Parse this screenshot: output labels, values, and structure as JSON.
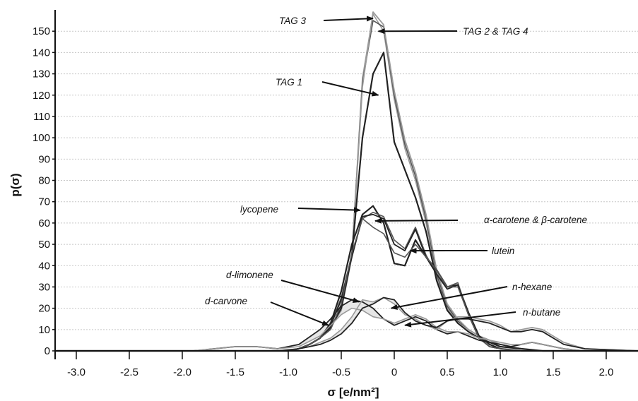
{
  "chart_data": {
    "type": "line",
    "title": "",
    "xlabel": "σ [e/nm²]",
    "ylabel": "p(σ)",
    "xlim": [
      -3.2,
      2.3
    ],
    "ylim": [
      0,
      160
    ],
    "x_ticks": [
      "-3.0",
      "-2.5",
      "-2.0",
      "-1.5",
      "-1.0",
      "-0.5",
      "0",
      "0.5",
      "1.0",
      "1.5",
      "2.0"
    ],
    "y_ticks": [
      "0",
      "10",
      "20",
      "30",
      "40",
      "50",
      "60",
      "70",
      "80",
      "90",
      "100",
      "110",
      "120",
      "130",
      "140",
      "150"
    ],
    "grid": "horizontal",
    "legend": "none",
    "colors": {
      "dark": "#222222",
      "mid": "#555555",
      "light": "#9a9a9a",
      "fill": "#e6e6e6"
    },
    "series": [
      {
        "x": [
          -3.2,
          -1.2,
          -1.0,
          -0.9,
          -0.8,
          -0.7,
          -0.6,
          -0.5,
          -0.4,
          -0.3,
          -0.2,
          -0.1,
          0.0,
          0.1,
          0.2,
          0.3,
          0.4,
          0.5,
          0.6,
          0.7,
          0.8,
          0.9,
          1.0,
          1.2,
          1.4,
          1.6,
          2.3
        ],
        "y": [
          0,
          0,
          0,
          1,
          3,
          6,
          11,
          20,
          45,
          128,
          158,
          150,
          118,
          95,
          80,
          60,
          35,
          20,
          14,
          10,
          7,
          5,
          3,
          1,
          0,
          0,
          0
        ]
      },
      {
        "x": [
          -3.2,
          -1.2,
          -1.0,
          -0.9,
          -0.8,
          -0.7,
          -0.6,
          -0.5,
          -0.4,
          -0.3,
          -0.2,
          -0.1,
          0.0,
          0.1,
          0.2,
          0.3,
          0.4,
          0.5,
          0.6,
          0.7,
          0.8,
          0.9,
          1.0,
          1.2,
          1.4,
          1.6,
          2.3
        ],
        "y": [
          0,
          0,
          0,
          1,
          3,
          6,
          11,
          20,
          45,
          126,
          155,
          152,
          120,
          97,
          82,
          62,
          36,
          21,
          14,
          10,
          7,
          5,
          3,
          1,
          0,
          0,
          0
        ]
      },
      {
        "x": [
          -3.2,
          -1.2,
          -1.0,
          -0.9,
          -0.8,
          -0.7,
          -0.6,
          -0.5,
          -0.4,
          -0.3,
          -0.2,
          -0.1,
          0.0,
          0.1,
          0.2,
          0.3,
          0.4,
          0.5,
          0.6,
          0.7,
          0.8,
          0.9,
          1.0,
          1.2,
          1.4,
          1.6,
          2.3
        ],
        "y": [
          0,
          0,
          0,
          1,
          3,
          6,
          11,
          19,
          44,
          124,
          159,
          153,
          122,
          99,
          84,
          64,
          38,
          22,
          15,
          10,
          7,
          5,
          3,
          1,
          0,
          0,
          0
        ]
      },
      {
        "x": [
          -3.2,
          -1.2,
          -1.0,
          -0.9,
          -0.8,
          -0.7,
          -0.6,
          -0.5,
          -0.4,
          -0.3,
          -0.2,
          -0.1,
          0.0,
          0.1,
          0.2,
          0.3,
          0.4,
          0.5,
          0.6,
          0.7,
          0.8,
          0.9,
          1.0,
          1.2,
          1.4,
          1.6,
          2.3
        ],
        "y": [
          0,
          0,
          0,
          1,
          3,
          6,
          11,
          20,
          45,
          100,
          130,
          140,
          98,
          85,
          72,
          56,
          33,
          19,
          13,
          9,
          6,
          4,
          2,
          1,
          0,
          0,
          0
        ]
      },
      {
        "x": [
          -3.2,
          -1.0,
          -0.9,
          -0.8,
          -0.7,
          -0.6,
          -0.5,
          -0.4,
          -0.3,
          -0.2,
          -0.1,
          0.0,
          0.1,
          0.2,
          0.3,
          0.4,
          0.5,
          0.6,
          0.7,
          0.8,
          0.9,
          1.0,
          1.2,
          1.4,
          1.6,
          2.3
        ],
        "y": [
          0,
          0,
          1,
          3,
          6,
          13,
          28,
          50,
          64,
          68,
          60,
          41,
          40,
          52,
          44,
          38,
          30,
          31,
          18,
          7,
          3,
          1,
          0,
          0,
          0,
          0
        ]
      },
      {
        "x": [
          -3.2,
          -1.0,
          -0.9,
          -0.8,
          -0.7,
          -0.6,
          -0.5,
          -0.4,
          -0.3,
          -0.2,
          -0.1,
          0.0,
          0.1,
          0.2,
          0.3,
          0.4,
          0.5,
          0.6,
          0.7,
          0.8,
          0.9,
          1.0,
          1.2,
          1.4,
          1.6,
          2.3
        ],
        "y": [
          0,
          0,
          1,
          3,
          6,
          12,
          25,
          45,
          62,
          65,
          63,
          52,
          48,
          58,
          45,
          36,
          30,
          32,
          17,
          6,
          2,
          1,
          0,
          0,
          0,
          0
        ]
      },
      {
        "x": [
          -3.2,
          -1.0,
          -0.9,
          -0.8,
          -0.7,
          -0.6,
          -0.5,
          -0.4,
          -0.3,
          -0.2,
          -0.1,
          0.0,
          0.1,
          0.2,
          0.3,
          0.4,
          0.5,
          0.6,
          0.7,
          0.8,
          0.9,
          1.0,
          1.2,
          1.4,
          1.6,
          2.3
        ],
        "y": [
          0,
          0,
          1,
          3,
          6,
          12,
          24,
          44,
          63,
          64,
          62,
          50,
          47,
          57,
          44,
          36,
          29,
          31,
          17,
          6,
          2,
          1,
          0,
          0,
          0,
          0
        ]
      },
      {
        "x": [
          -3.2,
          -1.0,
          -0.9,
          -0.8,
          -0.7,
          -0.6,
          -0.5,
          -0.4,
          -0.3,
          -0.2,
          -0.1,
          0.0,
          0.1,
          0.2,
          0.3,
          0.4,
          0.5,
          0.6,
          0.7,
          0.8,
          0.9,
          1.0,
          1.2,
          1.4,
          1.6,
          2.3
        ],
        "y": [
          0,
          0,
          1,
          3,
          6,
          10,
          22,
          46,
          62,
          58,
          55,
          46,
          44,
          50,
          44,
          38,
          30,
          30,
          17,
          6,
          2,
          1,
          0,
          0,
          0,
          0
        ]
      },
      {
        "x": [
          -3.2,
          -1.9,
          -1.7,
          -1.5,
          -1.3,
          -1.1,
          -0.9,
          -0.7,
          -0.6,
          -0.5,
          -0.4,
          -0.3,
          -0.2,
          -0.1,
          0.0,
          0.1,
          0.2,
          0.3,
          0.4,
          0.5,
          0.6,
          0.7,
          0.8,
          0.9,
          1.0,
          1.1,
          1.2,
          1.3,
          1.4,
          1.5,
          1.6,
          1.8,
          2.0,
          2.3
        ],
        "y": [
          0,
          0,
          1,
          2,
          2,
          1,
          3,
          10,
          15,
          21,
          24,
          23,
          20,
          15,
          12,
          14,
          16,
          14,
          10,
          8,
          9,
          7,
          5,
          4,
          3,
          2,
          3,
          4,
          3,
          2,
          1,
          0,
          0,
          0
        ]
      },
      {
        "x": [
          -3.2,
          -1.9,
          -1.7,
          -1.5,
          -1.3,
          -1.1,
          -0.9,
          -0.7,
          -0.6,
          -0.5,
          -0.4,
          -0.3,
          -0.2,
          -0.1,
          0.0,
          0.1,
          0.2,
          0.3,
          0.4,
          0.5,
          0.6,
          0.7,
          0.8,
          0.9,
          1.0,
          1.1,
          1.2,
          1.3,
          1.4,
          1.5,
          1.6,
          1.8,
          2.0,
          2.3
        ],
        "y": [
          0,
          0,
          1,
          2,
          2,
          1,
          2,
          7,
          12,
          17,
          20,
          19,
          16,
          15,
          13,
          15,
          17,
          15,
          11,
          9,
          9,
          8,
          6,
          5,
          4,
          3,
          3,
          4,
          3,
          2,
          1,
          0,
          0,
          0
        ]
      },
      {
        "x": [
          -3.2,
          -1.1,
          -0.9,
          -0.8,
          -0.7,
          -0.6,
          -0.5,
          -0.4,
          -0.3,
          -0.2,
          -0.1,
          0.0,
          0.1,
          0.2,
          0.3,
          0.4,
          0.5,
          0.6,
          0.7,
          0.8,
          0.9,
          1.0,
          1.1,
          1.2,
          1.3,
          1.4,
          1.5,
          1.6,
          1.8,
          2.3
        ],
        "y": [
          0,
          0,
          1,
          2,
          4,
          6,
          10,
          16,
          24,
          23,
          25,
          22,
          17,
          15,
          12,
          10,
          14,
          16,
          16,
          15,
          14,
          12,
          9,
          10,
          11,
          10,
          7,
          4,
          1,
          0
        ]
      },
      {
        "x": [
          -3.2,
          -1.1,
          -0.9,
          -0.8,
          -0.7,
          -0.6,
          -0.5,
          -0.4,
          -0.3,
          -0.2,
          -0.1,
          0.0,
          0.1,
          0.2,
          0.3,
          0.4,
          0.5,
          0.6,
          0.7,
          0.8,
          0.9,
          1.0,
          1.1,
          1.2,
          1.3,
          1.4,
          1.5,
          1.6,
          1.8,
          2.3
        ],
        "y": [
          0,
          0,
          1,
          2,
          3,
          5,
          8,
          13,
          20,
          22,
          25,
          24,
          18,
          14,
          12,
          11,
          14,
          15,
          15,
          14,
          13,
          11,
          9,
          9,
          10,
          9,
          6,
          3,
          1,
          0
        ]
      }
    ],
    "annotations": [
      {
        "text": "TAG 3",
        "arrow_to": [
          -0.2,
          156
        ]
      },
      {
        "text": "TAG 2 & TAG 4",
        "arrow_to": [
          -0.15,
          150
        ]
      },
      {
        "text": "TAG 1",
        "arrow_to": [
          -0.15,
          120
        ]
      },
      {
        "text": "lycopene",
        "arrow_to": [
          -0.32,
          66
        ]
      },
      {
        "text": "α-carotene & β-carotene",
        "arrow_to": [
          -0.18,
          61
        ]
      },
      {
        "text": "lutein",
        "arrow_to": [
          0.15,
          47
        ]
      },
      {
        "text": "d-limonene",
        "arrow_to": [
          -0.33,
          23
        ]
      },
      {
        "text": "n-hexane",
        "arrow_to": [
          -0.03,
          20
        ]
      },
      {
        "text": "d-carvone",
        "arrow_to": [
          -0.62,
          12
        ]
      },
      {
        "text": "n-butane",
        "arrow_to": [
          0.1,
          12
        ]
      }
    ]
  }
}
